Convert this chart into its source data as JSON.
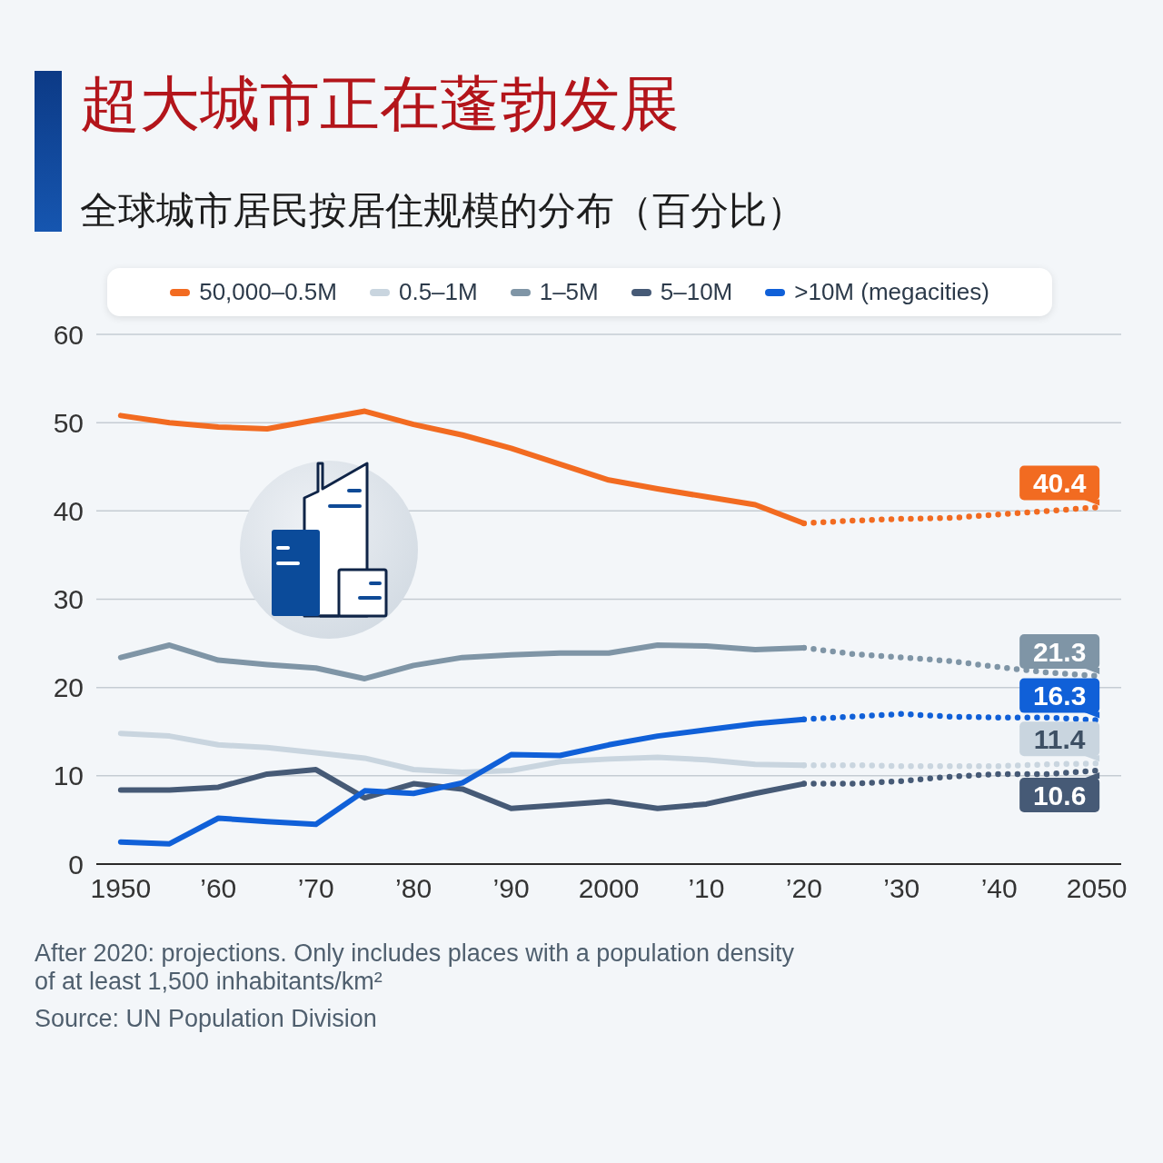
{
  "chart_data": {
    "type": "line",
    "title": "超大城市正在蓬勃发展",
    "subtitle": "全球城市居民按居住规模的分布（百分比）",
    "x": [
      1950,
      1955,
      1960,
      1965,
      1970,
      1975,
      1980,
      1985,
      1990,
      1995,
      2000,
      2005,
      2010,
      2015,
      2020
    ],
    "xlim": [
      1947.5,
      2052.5
    ],
    "xticks": [
      1950,
      {
        "value": 1960,
        "label": "’60"
      },
      {
        "value": 1970,
        "label": "’70"
      },
      {
        "value": 1980,
        "label": "’80"
      },
      {
        "value": 1990,
        "label": "’90"
      },
      2000,
      {
        "value": 2010,
        "label": "’10"
      },
      {
        "value": 2020,
        "label": "’20"
      },
      {
        "value": 2030,
        "label": "’30"
      },
      {
        "value": 2040,
        "label": "’40"
      },
      2050
    ],
    "ylim": [
      0,
      60
    ],
    "yticks": [
      0,
      10,
      20,
      30,
      40,
      50,
      60
    ],
    "grid": "y",
    "legend": "top",
    "line_style": "solid",
    "series": [
      {
        "name": "50,000–0.5M",
        "color": "#f26b21",
        "values": [
          50.8,
          50.0,
          49.5,
          49.3,
          50.3,
          51.3,
          49.8,
          48.6,
          47.1,
          45.3,
          43.5,
          42.5,
          41.6,
          40.7,
          38.6
        ]
      },
      {
        "name": "0.5–1M",
        "color": "#c9d5df",
        "values": [
          14.8,
          14.5,
          13.5,
          13.2,
          12.6,
          12.0,
          10.7,
          10.4,
          10.6,
          11.6,
          11.9,
          12.1,
          11.8,
          11.3,
          11.2
        ]
      },
      {
        "name": "1–5M",
        "color": "#7f95a6",
        "values": [
          23.4,
          24.8,
          23.1,
          22.6,
          22.2,
          21.0,
          22.5,
          23.4,
          23.7,
          23.9,
          23.9,
          24.8,
          24.7,
          24.3,
          24.5
        ]
      },
      {
        "name": "5–10M",
        "color": "#465a76",
        "values": [
          8.4,
          8.4,
          8.7,
          10.2,
          10.7,
          7.5,
          9.1,
          8.5,
          6.3,
          6.7,
          7.1,
          6.3,
          6.8,
          8.0,
          9.1
        ]
      },
      {
        "name": ">10M (megacities)",
        "color": "#1060d8",
        "values": [
          2.5,
          2.3,
          5.2,
          4.8,
          4.5,
          8.3,
          8.0,
          9.2,
          12.4,
          12.3,
          13.5,
          14.5,
          15.2,
          15.9,
          16.4
        ]
      },
      {
        "color": "#f26b21",
        "x": [
          2020,
          2025,
          2030,
          2035,
          2040,
          2045,
          2050
        ],
        "line_style": "dotted",
        "values": [
          38.6,
          38.9,
          39.1,
          39.2,
          39.6,
          40.0,
          40.4
        ],
        "value_labels": [
          null,
          null,
          null,
          null,
          null,
          null,
          "40.4"
        ]
      },
      {
        "color": "#c9d5df",
        "x": [
          2020,
          2025,
          2030,
          2035,
          2040,
          2045,
          2050
        ],
        "line_style": "dotted",
        "values": [
          11.2,
          11.2,
          11.1,
          11.1,
          11.1,
          11.3,
          11.4
        ],
        "value_labels": [
          null,
          null,
          null,
          null,
          null,
          null,
          "11.4"
        ]
      },
      {
        "color": "#7f95a6",
        "x": [
          2020,
          2025,
          2030,
          2035,
          2040,
          2045,
          2050
        ],
        "line_style": "dotted",
        "values": [
          24.5,
          23.8,
          23.4,
          23.0,
          22.3,
          21.7,
          21.3
        ],
        "value_labels": [
          null,
          null,
          null,
          null,
          null,
          null,
          "21.3"
        ]
      },
      {
        "color": "#465a76",
        "x": [
          2020,
          2025,
          2030,
          2035,
          2040,
          2045,
          2050
        ],
        "line_style": "dotted",
        "values": [
          9.1,
          9.1,
          9.4,
          9.9,
          10.2,
          10.2,
          10.6
        ],
        "value_labels": [
          null,
          null,
          null,
          null,
          null,
          null,
          "10.6"
        ]
      },
      {
        "color": "#1060d8",
        "x": [
          2020,
          2025,
          2030,
          2035,
          2040,
          2045,
          2050
        ],
        "line_style": "dotted",
        "values": [
          16.4,
          16.7,
          17.0,
          16.7,
          16.6,
          16.6,
          16.3
        ],
        "value_labels": [
          null,
          null,
          null,
          null,
          null,
          null,
          "16.3"
        ]
      }
    ],
    "annotations": [
      "After 2020: projections. Only includes places with a population density of at least 1,500 inhabitants/km²",
      "Source: UN Population Division"
    ]
  }
}
